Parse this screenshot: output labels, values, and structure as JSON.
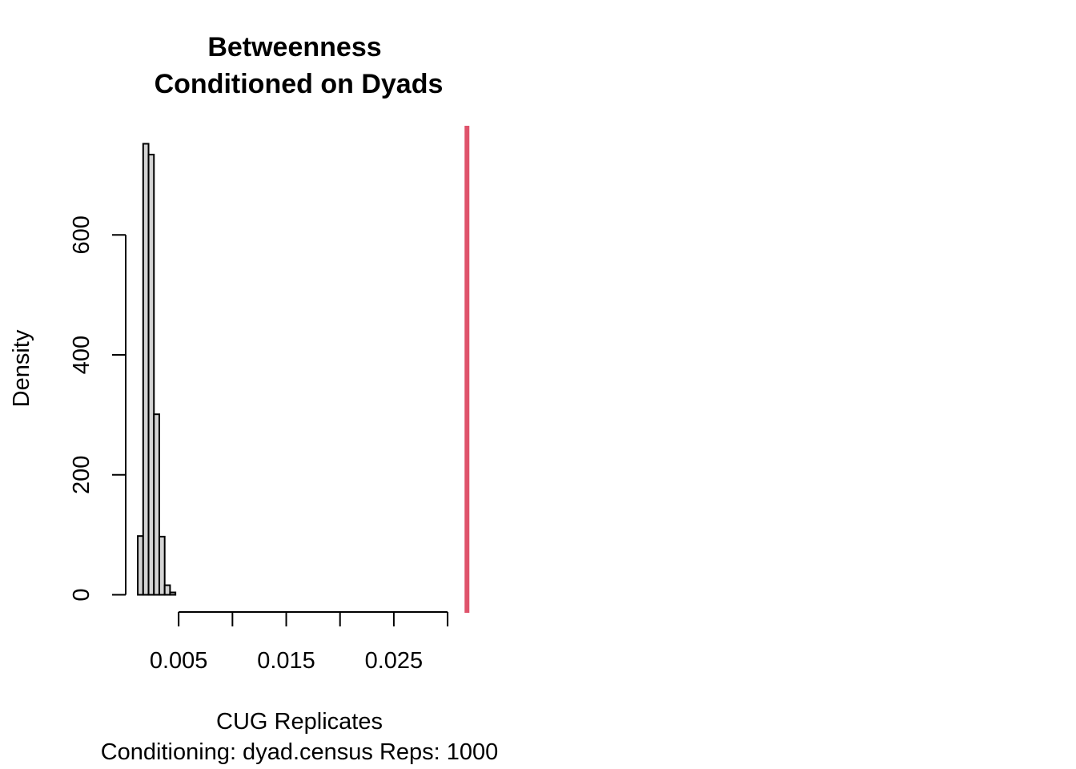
{
  "chart_data": {
    "type": "bar",
    "title_lines": [
      "Betweenness",
      "Conditioned on Dyads"
    ],
    "xlabel": "CUG Replicates",
    "sublabel": "Conditioning: dyad.census Reps: 1000",
    "ylabel": "Density",
    "x_ticks": [
      0.005,
      0.01,
      0.015,
      0.02,
      0.025,
      0.03
    ],
    "x_tick_labels": [
      "0.005",
      "0.015",
      "0.025"
    ],
    "x_tick_label_values": [
      0.005,
      0.015,
      0.025
    ],
    "y_ticks": [
      0,
      200,
      400,
      600
    ],
    "y_tick_labels": [
      "0",
      "200",
      "400",
      "600"
    ],
    "bins": [
      {
        "x0": 0.0012,
        "x1": 0.0017,
        "density": 98
      },
      {
        "x0": 0.0017,
        "x1": 0.0022,
        "density": 752
      },
      {
        "x0": 0.0022,
        "x1": 0.0027,
        "density": 734
      },
      {
        "x0": 0.0027,
        "x1": 0.0032,
        "density": 301
      },
      {
        "x0": 0.0032,
        "x1": 0.0037,
        "density": 97
      },
      {
        "x0": 0.0037,
        "x1": 0.0042,
        "density": 16
      },
      {
        "x0": 0.0042,
        "x1": 0.0047,
        "density": 4
      }
    ],
    "observed_value": 0.0318,
    "observed_line_color": "#df536b",
    "bar_color": "#d3d3d3",
    "xlim": [
      0.0003,
      0.0323
    ],
    "ylim": [
      -30,
      782
    ]
  }
}
